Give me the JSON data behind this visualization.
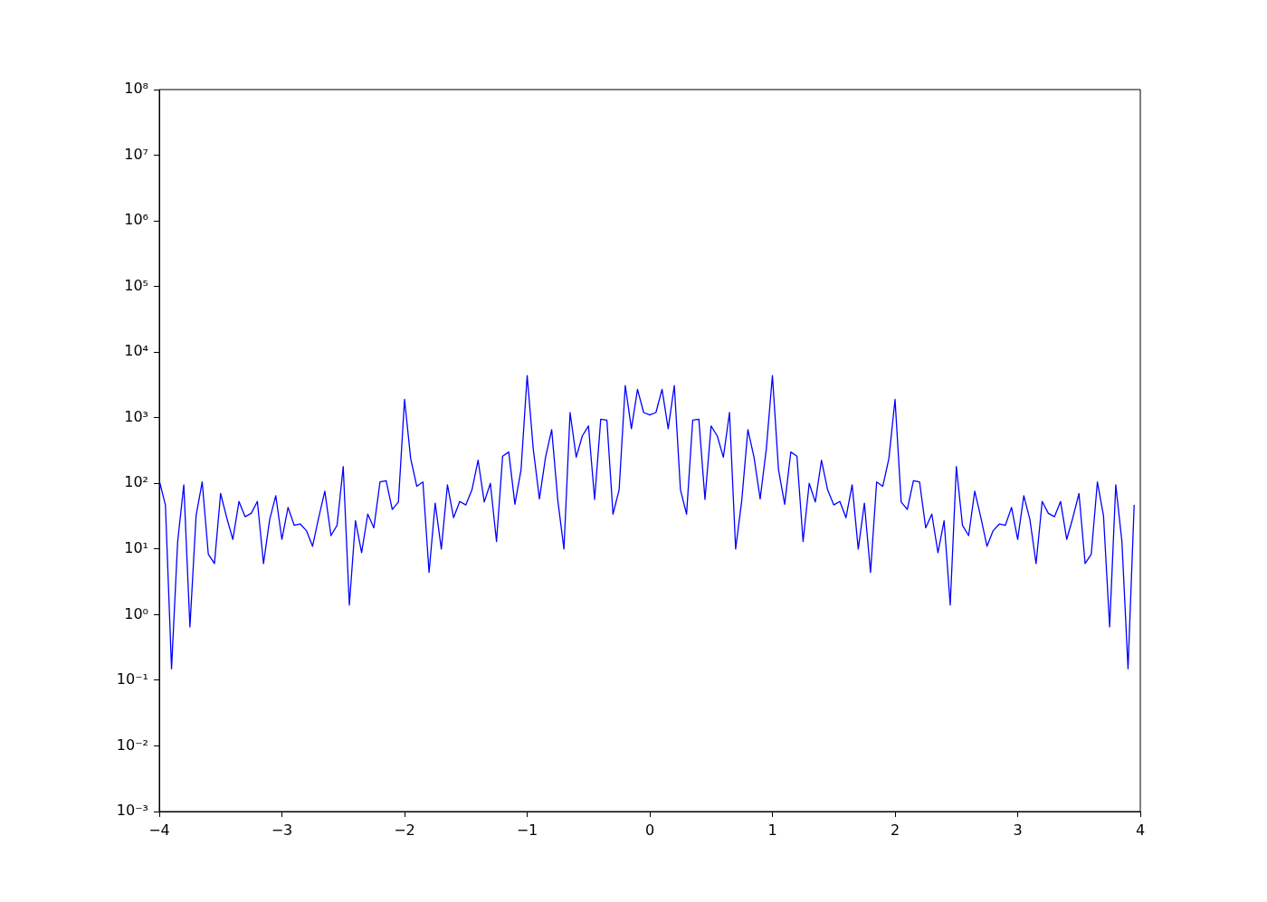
{
  "chart_data": {
    "type": "line",
    "log": "y",
    "grid": false,
    "legend": false,
    "marker": "none",
    "line_style": "solid",
    "x": [
      -4,
      -3.95,
      -3.9,
      -3.85,
      -3.8,
      -3.75,
      -3.7,
      -3.65,
      -3.6,
      -3.55,
      -3.5,
      -3.45,
      -3.4,
      -3.35,
      -3.3,
      -3.25,
      -3.2,
      -3.15,
      -3.1,
      -3.05,
      -3,
      -2.95,
      -2.9,
      -2.85,
      -2.8,
      -2.75,
      -2.7,
      -2.65,
      -2.6,
      -2.55,
      -2.5,
      -2.45,
      -2.4,
      -2.35,
      -2.3,
      -2.25,
      -2.2,
      -2.15,
      -2.1,
      -2.05,
      -2,
      -1.95,
      -1.9,
      -1.85,
      -1.8,
      -1.75,
      -1.7,
      -1.65,
      -1.6,
      -1.55,
      -1.5,
      -1.45,
      -1.4,
      -1.35,
      -1.3,
      -1.25,
      -1.2,
      -1.15,
      -1.1,
      -1.05,
      -1,
      -0.95,
      -0.9,
      -0.85,
      -0.8,
      -0.75,
      -0.7,
      -0.65,
      -0.6,
      -0.55,
      -0.5,
      -0.45,
      -0.4,
      -0.35,
      -0.3,
      -0.25,
      -0.2,
      -0.15,
      -0.1,
      -0.05,
      0,
      0.05,
      0.1,
      0.15,
      0.2,
      0.25,
      0.3,
      0.35,
      0.4,
      0.45,
      0.5,
      0.55,
      0.6,
      0.65,
      0.7,
      0.75,
      0.8,
      0.85,
      0.9,
      0.95,
      1,
      1.05,
      1.1,
      1.15,
      1.2,
      1.25,
      1.3,
      1.35,
      1.4,
      1.45,
      1.5,
      1.55,
      1.6,
      1.65,
      1.7,
      1.75,
      1.8,
      1.85,
      1.9,
      1.95,
      2,
      2.05,
      2.1,
      2.15,
      2.2,
      2.25,
      2.3,
      2.35,
      2.4,
      2.45,
      2.5,
      2.55,
      2.6,
      2.65,
      2.7,
      2.75,
      2.8,
      2.85,
      2.9,
      2.95,
      3,
      3.05,
      3.1,
      3.15,
      3.2,
      3.25,
      3.3,
      3.35,
      3.4,
      3.45,
      3.5,
      3.55,
      3.6,
      3.65,
      3.7,
      3.75,
      3.8,
      3.85,
      3.9,
      3.95
    ],
    "series": [
      {
        "color": "#0000ff",
        "values": [
          110,
          47,
          0.15,
          13,
          95,
          0.65,
          32,
          105,
          8.3,
          6,
          70,
          30,
          14,
          53,
          31,
          35,
          53,
          6,
          28,
          65,
          14,
          43,
          23,
          24,
          19,
          11,
          30,
          76,
          16,
          23,
          180,
          1.4,
          27,
          8.8,
          34,
          21,
          105,
          110,
          40,
          52,
          1900,
          240,
          90,
          105,
          4.4,
          50,
          10,
          95,
          30,
          53,
          47,
          80,
          225,
          52,
          100,
          13,
          260,
          300,
          48,
          160,
          4400,
          330,
          58,
          250,
          660,
          55,
          10,
          1200,
          250,
          530,
          750,
          57,
          950,
          920,
          34,
          80,
          3100,
          680,
          2700,
          1200,
          1100,
          1200,
          2700,
          680,
          3100,
          80,
          34,
          920,
          950,
          57,
          750,
          530,
          250,
          1200,
          10,
          55,
          660,
          250,
          58,
          330,
          4400,
          160,
          48,
          300,
          260,
          13,
          100,
          52,
          225,
          80,
          47,
          53,
          30,
          95,
          10,
          50,
          4.4,
          105,
          90,
          240,
          1900,
          52,
          40,
          110,
          105,
          21,
          34,
          8.8,
          27,
          1.4,
          180,
          23,
          16,
          76,
          30,
          11,
          19,
          24,
          23,
          43,
          14,
          65,
          28,
          6,
          53,
          35,
          31,
          53,
          14,
          30,
          70,
          6,
          8.3,
          105,
          32,
          0.65,
          95,
          13,
          0.15,
          47
        ]
      }
    ],
    "xlim": [
      -4,
      4
    ],
    "xticks": [
      {
        "value": -4,
        "label": "−4"
      },
      {
        "value": -3,
        "label": "−3"
      },
      {
        "value": -2,
        "label": "−2"
      },
      {
        "value": -1,
        "label": "−1"
      },
      {
        "value": 0,
        "label": "0"
      },
      {
        "value": 1,
        "label": "1"
      },
      {
        "value": 2,
        "label": "2"
      },
      {
        "value": 3,
        "label": "3"
      },
      {
        "value": 4,
        "label": "4"
      }
    ],
    "ylim": [
      0.001,
      100000000
    ],
    "yticks": [
      {
        "value": 0.001,
        "label": "10⁻³"
      },
      {
        "value": 0.01,
        "label": "10⁻²"
      },
      {
        "value": 0.1,
        "label": "10⁻¹"
      },
      {
        "value": 1,
        "label": "10⁰"
      },
      {
        "value": 10,
        "label": "10¹"
      },
      {
        "value": 100,
        "label": "10²"
      },
      {
        "value": 1000,
        "label": "10³"
      },
      {
        "value": 10000,
        "label": "10⁴"
      },
      {
        "value": 100000,
        "label": "10⁵"
      },
      {
        "value": 1000000,
        "label": "10⁶"
      },
      {
        "value": 10000000,
        "label": "10⁷"
      },
      {
        "value": 100000000,
        "label": "10⁸"
      }
    ]
  }
}
